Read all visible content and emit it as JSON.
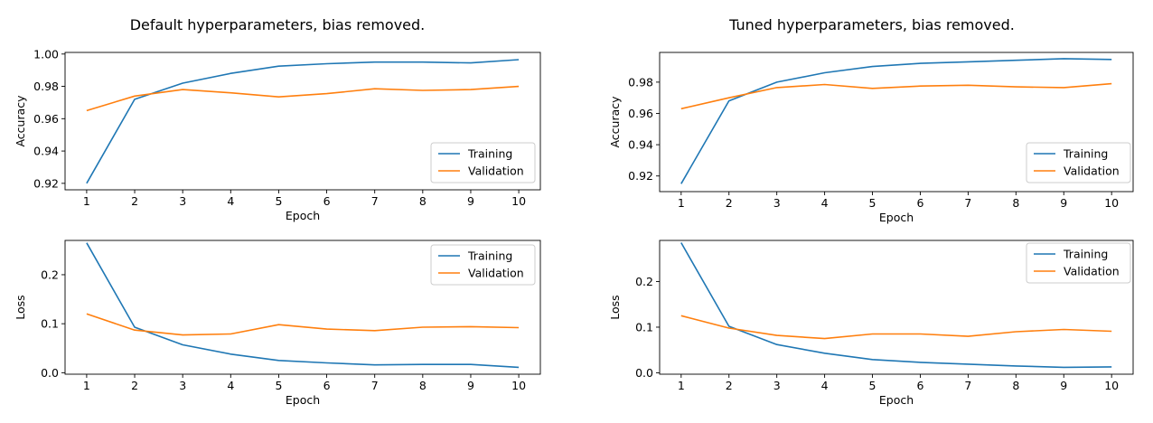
{
  "panels": [
    {
      "title": "Default hyperparameters, bias removed."
    },
    {
      "title": "Tuned hyperparameters, bias removed."
    }
  ],
  "colors": {
    "training": "#1f77b4",
    "validation": "#ff7f0e"
  },
  "chart_data": [
    {
      "type": "line",
      "panel": 0,
      "xlabel": "Epoch",
      "ylabel": "Accuracy",
      "x": [
        1,
        2,
        3,
        4,
        5,
        6,
        7,
        8,
        9,
        10
      ],
      "xlim": [
        0.55,
        10.45
      ],
      "ylim": [
        0.916,
        1.001
      ],
      "yticks": [
        0.92,
        0.94,
        0.96,
        0.98,
        1.0
      ],
      "ytick_labels": [
        "0.92",
        "0.94",
        "0.96",
        "0.98",
        "1.00"
      ],
      "legend": "lower-right",
      "series": [
        {
          "name": "Training",
          "values": [
            0.92,
            0.972,
            0.982,
            0.988,
            0.9925,
            0.994,
            0.995,
            0.995,
            0.9945,
            0.9965
          ]
        },
        {
          "name": "Validation",
          "values": [
            0.965,
            0.974,
            0.978,
            0.976,
            0.9735,
            0.9755,
            0.9785,
            0.9775,
            0.978,
            0.98
          ]
        }
      ]
    },
    {
      "type": "line",
      "panel": 0,
      "xlabel": "Epoch",
      "ylabel": "Loss",
      "x": [
        1,
        2,
        3,
        4,
        5,
        6,
        7,
        8,
        9,
        10
      ],
      "xlim": [
        0.55,
        10.45
      ],
      "ylim": [
        -0.003,
        0.27
      ],
      "yticks": [
        0.0,
        0.1,
        0.2
      ],
      "ytick_labels": [
        "0.0",
        "0.1",
        "0.2"
      ],
      "legend": "top-right",
      "series": [
        {
          "name": "Training",
          "values": [
            0.265,
            0.093,
            0.057,
            0.038,
            0.025,
            0.02,
            0.016,
            0.017,
            0.017,
            0.011
          ]
        },
        {
          "name": "Validation",
          "values": [
            0.12,
            0.087,
            0.077,
            0.079,
            0.098,
            0.089,
            0.086,
            0.093,
            0.094,
            0.092
          ]
        }
      ]
    },
    {
      "type": "line",
      "panel": 1,
      "xlabel": "Epoch",
      "ylabel": "Accuracy",
      "x": [
        1,
        2,
        3,
        4,
        5,
        6,
        7,
        8,
        9,
        10
      ],
      "xlim": [
        0.55,
        10.45
      ],
      "ylim": [
        0.91,
        0.999
      ],
      "yticks": [
        0.92,
        0.94,
        0.96,
        0.98
      ],
      "ytick_labels": [
        "0.92",
        "0.94",
        "0.96",
        "0.98"
      ],
      "legend": "lower-right",
      "series": [
        {
          "name": "Training",
          "values": [
            0.915,
            0.968,
            0.98,
            0.986,
            0.99,
            0.992,
            0.993,
            0.994,
            0.995,
            0.9945
          ]
        },
        {
          "name": "Validation",
          "values": [
            0.963,
            0.97,
            0.9765,
            0.9785,
            0.976,
            0.9775,
            0.978,
            0.977,
            0.9765,
            0.979
          ]
        }
      ]
    },
    {
      "type": "line",
      "panel": 1,
      "xlabel": "Epoch",
      "ylabel": "Loss",
      "x": [
        1,
        2,
        3,
        4,
        5,
        6,
        7,
        8,
        9,
        10
      ],
      "xlim": [
        0.55,
        10.45
      ],
      "ylim": [
        -0.003,
        0.29
      ],
      "yticks": [
        0.0,
        0.1,
        0.2
      ],
      "ytick_labels": [
        "0.0",
        "0.1",
        "0.2"
      ],
      "legend": "top-right",
      "series": [
        {
          "name": "Training",
          "values": [
            0.285,
            0.102,
            0.062,
            0.043,
            0.029,
            0.023,
            0.019,
            0.015,
            0.012,
            0.013
          ]
        },
        {
          "name": "Validation",
          "values": [
            0.125,
            0.098,
            0.082,
            0.075,
            0.085,
            0.085,
            0.08,
            0.09,
            0.095,
            0.091
          ]
        }
      ]
    }
  ]
}
